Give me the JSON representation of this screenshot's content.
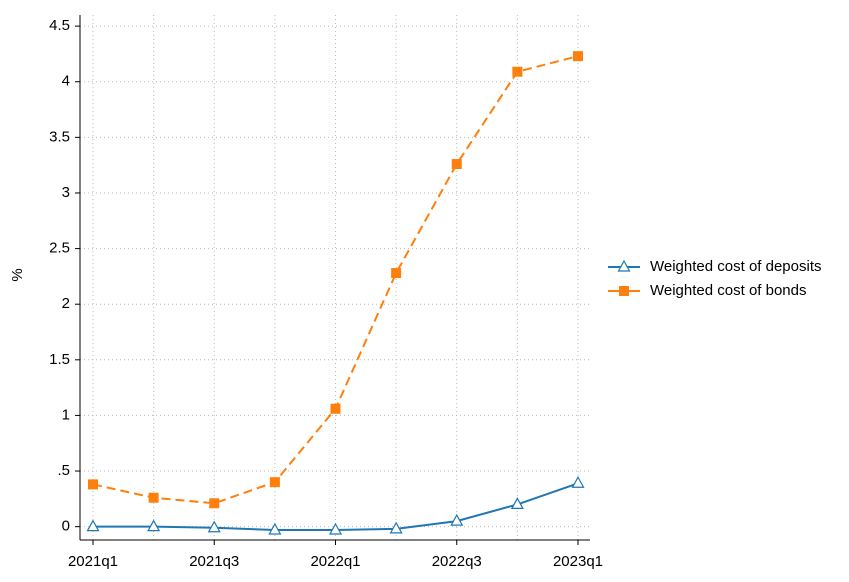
{
  "chart_data": {
    "type": "line",
    "y_label": "%",
    "categories": [
      "2021q1",
      null,
      "2021q3",
      null,
      "2022q1",
      null,
      "2022q3",
      null,
      "2023q1"
    ],
    "series": [
      {
        "name": "Weighted cost of deposits",
        "color": "#1f77b4",
        "line_style": "solid",
        "marker": "triangle",
        "values": [
          0.0,
          0.0,
          -0.01,
          -0.03,
          -0.03,
          -0.02,
          0.05,
          0.2,
          0.39
        ]
      },
      {
        "name": "Weighted cost of bonds",
        "color": "#ff7f0e",
        "line_style": "dashed",
        "marker": "square",
        "values": [
          0.38,
          0.26,
          0.21,
          0.4,
          1.06,
          2.28,
          3.26,
          4.09,
          4.23
        ]
      }
    ],
    "ylim": [
      -0.12,
      4.6
    ],
    "yticks": [
      0,
      {
        "value": 0.5,
        "label": ".5"
      },
      1,
      1.5,
      2,
      2.5,
      3,
      3.5,
      4,
      4.5
    ],
    "grid": true,
    "legend": "right"
  }
}
